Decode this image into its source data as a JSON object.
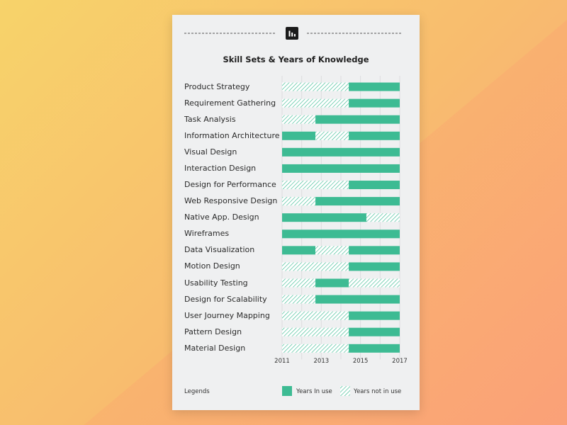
{
  "chart_data": {
    "type": "bar",
    "orientation": "horizontal-stacked",
    "title": "Skill Sets & Years of Knowledge",
    "xlim": [
      2011,
      2017
    ],
    "xticks": [
      "2011",
      "2013",
      "2015",
      "2017"
    ],
    "grid": true,
    "colors": {
      "in_use": "#3dbb93",
      "not_in_use": "#3dbb93"
    },
    "categories": [
      "Product Strategy",
      "Requirement Gathering",
      "Task Analysis",
      "Information Architecture",
      "Visual Design",
      "Interaction Design",
      "Design for Performance",
      "Web Responsive Design",
      "Native App. Design",
      "Wireframes",
      "Data Visualization",
      "Motion Design",
      "Usability Testing",
      "Design for Scalability",
      "User Journey Mapping",
      "Pattern Design",
      "Material Design"
    ],
    "series": [
      {
        "name": "Years In use",
        "style": "solid",
        "ranges": [
          [
            [
              2014.4,
              2017
            ]
          ],
          [
            [
              2014.4,
              2017
            ]
          ],
          [
            [
              2012.7,
              2017
            ]
          ],
          [
            [
              2011,
              2012.7
            ],
            [
              2014.4,
              2017
            ]
          ],
          [
            [
              2011,
              2017
            ]
          ],
          [
            [
              2011,
              2017
            ]
          ],
          [
            [
              2014.4,
              2017
            ]
          ],
          [
            [
              2012.7,
              2017
            ]
          ],
          [
            [
              2011,
              2015.3
            ]
          ],
          [
            [
              2011,
              2017
            ]
          ],
          [
            [
              2011,
              2012.7
            ],
            [
              2014.4,
              2017
            ]
          ],
          [
            [
              2014.4,
              2017
            ]
          ],
          [
            [
              2012.7,
              2014.4
            ]
          ],
          [
            [
              2012.7,
              2017
            ]
          ],
          [
            [
              2014.4,
              2017
            ]
          ],
          [
            [
              2014.4,
              2017
            ]
          ],
          [
            [
              2014.4,
              2017
            ]
          ]
        ]
      },
      {
        "name": "Years not in use",
        "style": "hatched",
        "ranges": [
          [
            [
              2011,
              2014.4
            ]
          ],
          [
            [
              2011,
              2014.4
            ]
          ],
          [
            [
              2011,
              2012.7
            ]
          ],
          [
            [
              2012.7,
              2014.4
            ]
          ],
          [],
          [],
          [
            [
              2011,
              2014.4
            ]
          ],
          [
            [
              2011,
              2012.7
            ]
          ],
          [
            [
              2015.3,
              2017
            ]
          ],
          [],
          [
            [
              2012.7,
              2014.4
            ]
          ],
          [
            [
              2011,
              2014.4
            ]
          ],
          [
            [
              2011,
              2012.7
            ],
            [
              2014.4,
              2017
            ]
          ],
          [
            [
              2011,
              2012.7
            ]
          ],
          [
            [
              2011,
              2014.4
            ]
          ],
          [
            [
              2011,
              2014.4
            ]
          ],
          [
            [
              2011,
              2014.4
            ]
          ]
        ]
      }
    ]
  },
  "legend": {
    "title": "Legends",
    "items": [
      {
        "label": "Years In use",
        "style": "solid"
      },
      {
        "label": "Years not in use",
        "style": "hatched"
      }
    ]
  },
  "header": {
    "icon": "bar-chart-icon"
  }
}
